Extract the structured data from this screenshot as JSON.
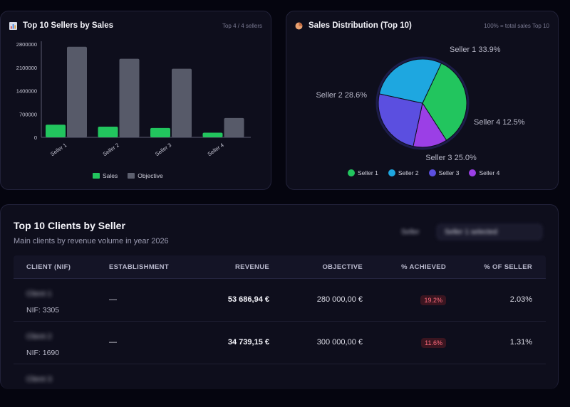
{
  "bar_panel": {
    "title": "Top 10 Sellers by Sales",
    "meta": "Top 4 / 4 sellers",
    "legend": [
      {
        "label": "Sales",
        "color": "#22c55e"
      },
      {
        "label": "Objective",
        "color": "#5c5f6e"
      }
    ]
  },
  "pie_panel": {
    "title": "Sales Distribution (Top 10)",
    "meta": "100% = total sales Top 10",
    "slice_labels": [
      "Seller 1 33.9%",
      "Seller 2 28.6%",
      "Seller 3 25.0%",
      "Seller 4 12.5%"
    ],
    "legend": [
      {
        "label": "Seller 1",
        "color": "#22c55e"
      },
      {
        "label": "Seller 2",
        "color": "#1ea7e0"
      },
      {
        "label": "Seller 3",
        "color": "#5b4fe0"
      },
      {
        "label": "Seller 4",
        "color": "#9b3fe6"
      }
    ]
  },
  "chart_data": [
    {
      "type": "bar",
      "title": "Top 10 Sellers by Sales",
      "categories": [
        "Seller 1",
        "Seller 2",
        "Seller 3",
        "Seller 4"
      ],
      "series": [
        {
          "name": "Sales",
          "values": [
            380000,
            320000,
            280000,
            140000
          ],
          "color": "#22c55e"
        },
        {
          "name": "Objective",
          "values": [
            2720000,
            2360000,
            2060000,
            580000
          ],
          "color": "#5c5f6e"
        }
      ],
      "yticks": [
        "2800000",
        "2100000",
        "1400000",
        "700000",
        "0"
      ],
      "ylim": [
        0,
        2800000
      ]
    },
    {
      "type": "pie",
      "title": "Sales Distribution (Top 10)",
      "labels": [
        "Seller 1",
        "Seller 2",
        "Seller 3",
        "Seller 4"
      ],
      "values": [
        33.9,
        28.6,
        25.0,
        12.5
      ],
      "colors": [
        "#22c55e",
        "#1ea7e0",
        "#5b4fe0",
        "#9b3fe6"
      ]
    }
  ],
  "table_panel": {
    "title": "Top 10 Clients by Seller",
    "subtitle": "Main clients by revenue volume in year 2026",
    "filter_label": "Seller",
    "filter_value": "Seller 1 selected",
    "columns": [
      "CLIENT (NIF)",
      "ESTABLISHMENT",
      "REVENUE",
      "OBJECTIVE",
      "% ACHIEVED",
      "% OF SELLER"
    ],
    "rows": [
      {
        "client": "Client 1",
        "nif": "NIF: 3305",
        "establishment": "—",
        "revenue": "53 686,94 €",
        "objective": "280 000,00 €",
        "achieved": "19.2%",
        "of_seller": "2.03%"
      },
      {
        "client": "Client 2",
        "nif": "NIF: 1690",
        "establishment": "—",
        "revenue": "34 739,15 €",
        "objective": "300 000,00 €",
        "achieved": "11.6%",
        "of_seller": "1.31%"
      },
      {
        "client": "Client 3",
        "nif": "",
        "establishment": "",
        "revenue": "",
        "objective": "",
        "achieved": "",
        "of_seller": ""
      }
    ]
  }
}
